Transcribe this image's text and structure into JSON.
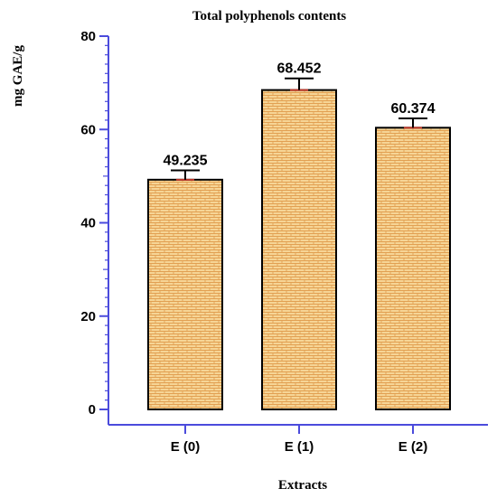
{
  "chart_data": {
    "type": "bar",
    "title": "Total polyphenols contents",
    "xlabel": "Extracts",
    "ylabel": "mg GAE/g",
    "categories": [
      "E (0)",
      "E (1)",
      "E (2)"
    ],
    "values": [
      49.235,
      68.452,
      60.374
    ],
    "value_labels": [
      "49.235",
      "68.452",
      "60.374"
    ],
    "error": [
      2.0,
      2.5,
      2.0
    ],
    "ylim": [
      0,
      80
    ],
    "yticks": [
      0,
      20,
      40,
      60,
      80
    ],
    "grid": false,
    "legend": "none"
  },
  "colors": {
    "axis": "#4b4bdc",
    "bar_fill": "#f6d596",
    "bar_pattern": "#e2a052",
    "bar_outline": "#000000",
    "error_bar": "#000000",
    "error_cap_base": "#c0392b"
  }
}
